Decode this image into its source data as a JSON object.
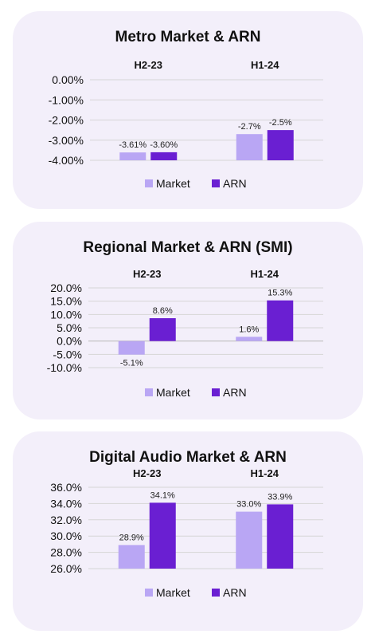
{
  "colors": {
    "market": "#b9a6f4",
    "arn": "#6a1fd2",
    "panel": "#f3effa"
  },
  "chart_data": [
    {
      "type": "bar",
      "title": "Metro Market & ARN",
      "categories": [
        "H2-23",
        "H1-24"
      ],
      "series": [
        {
          "name": "Market",
          "values": [
            -3.61,
            -2.7
          ],
          "labels": [
            "-3.61%",
            "-2.7%"
          ]
        },
        {
          "name": "ARN",
          "values": [
            -3.6,
            -2.5
          ],
          "labels": [
            "-3.60%",
            "-2.5%"
          ]
        }
      ],
      "yticks": [
        "0.00%",
        "-1.00%",
        "-2.00%",
        "-3.00%",
        "-4.00%"
      ],
      "ylim": [
        -4,
        0
      ],
      "legend": "bottom"
    },
    {
      "type": "bar",
      "title": "Regional Market & ARN (SMI)",
      "categories": [
        "H2-23",
        "H1-24"
      ],
      "series": [
        {
          "name": "Market",
          "values": [
            -5.1,
            1.6
          ],
          "labels": [
            "-5.1%",
            "1.6%"
          ]
        },
        {
          "name": "ARN",
          "values": [
            8.6,
            15.3
          ],
          "labels": [
            "8.6%",
            "15.3%"
          ]
        }
      ],
      "yticks": [
        "20.0%",
        "15.0%",
        "10.0%",
        "5.0%",
        "0.0%",
        "-5.0%",
        "-10.0%"
      ],
      "ylim": [
        -10,
        20
      ],
      "legend": "bottom"
    },
    {
      "type": "bar",
      "title": "Digital Audio Market & ARN",
      "categories": [
        "H2-23",
        "H1-24"
      ],
      "series": [
        {
          "name": "Market",
          "values": [
            28.9,
            33.0
          ],
          "labels": [
            "28.9%",
            "33.0%"
          ]
        },
        {
          "name": "ARN",
          "values": [
            34.1,
            33.9
          ],
          "labels": [
            "34.1%",
            "33.9%"
          ]
        }
      ],
      "yticks": [
        "36.0%",
        "34.0%",
        "32.0%",
        "30.0%",
        "28.0%",
        "26.0%"
      ],
      "ylim": [
        26,
        36
      ],
      "legend": "bottom"
    }
  ]
}
